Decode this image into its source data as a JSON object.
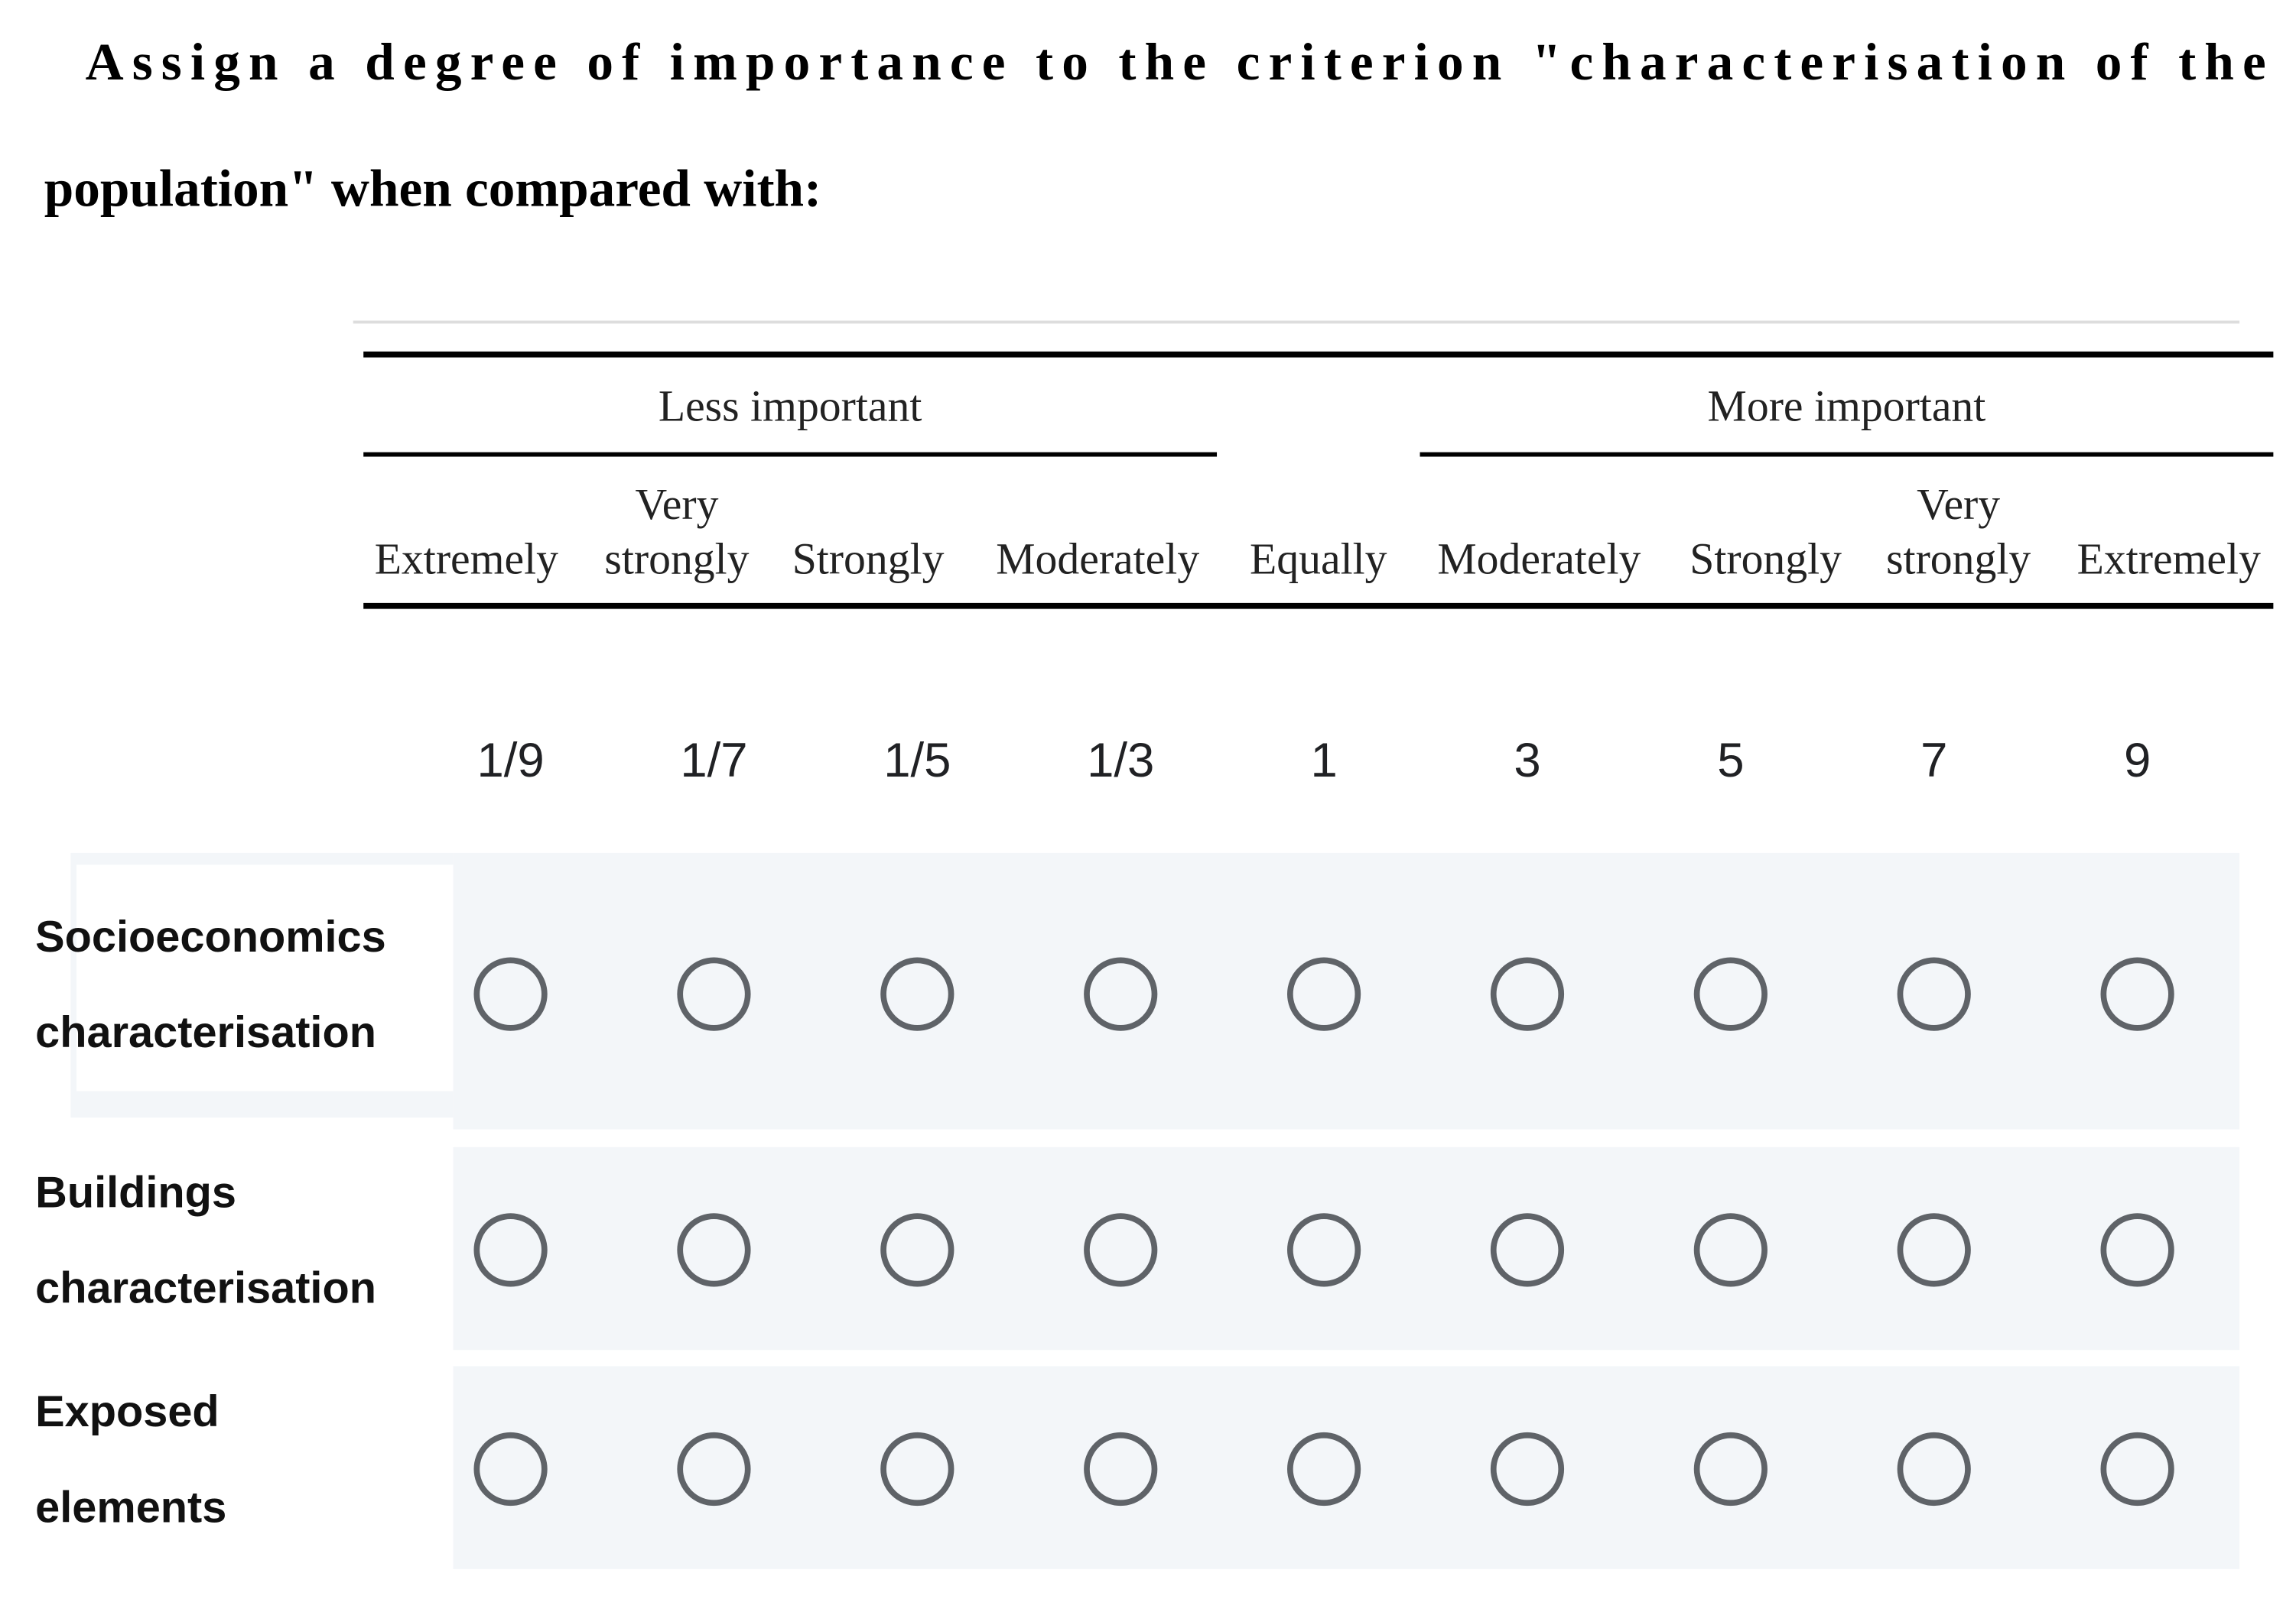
{
  "question": {
    "lines": [
      "Assign a degree of importance to the criterion \"characterisation of the",
      "population\" when compared with:"
    ]
  },
  "groups": [
    "Less important",
    "More important"
  ],
  "scale_labels": [
    [
      "Extremely"
    ],
    [
      "Very",
      "strongly"
    ],
    [
      "Strongly"
    ],
    [
      "Moderately"
    ],
    [
      "Equally"
    ],
    [
      "Moderately"
    ],
    [
      "Strongly"
    ],
    [
      "Very",
      "strongly"
    ],
    [
      "Extremely"
    ]
  ],
  "options": [
    "1/9",
    "1/7",
    "1/5",
    "1/3",
    "1",
    "3",
    "5",
    "7",
    "9"
  ],
  "rows": [
    {
      "label": [
        "Socioeconomics",
        "characterisation"
      ]
    },
    {
      "label": [
        "Buildings",
        "characterisation"
      ]
    },
    {
      "label": [
        "Exposed",
        "elements"
      ]
    }
  ]
}
